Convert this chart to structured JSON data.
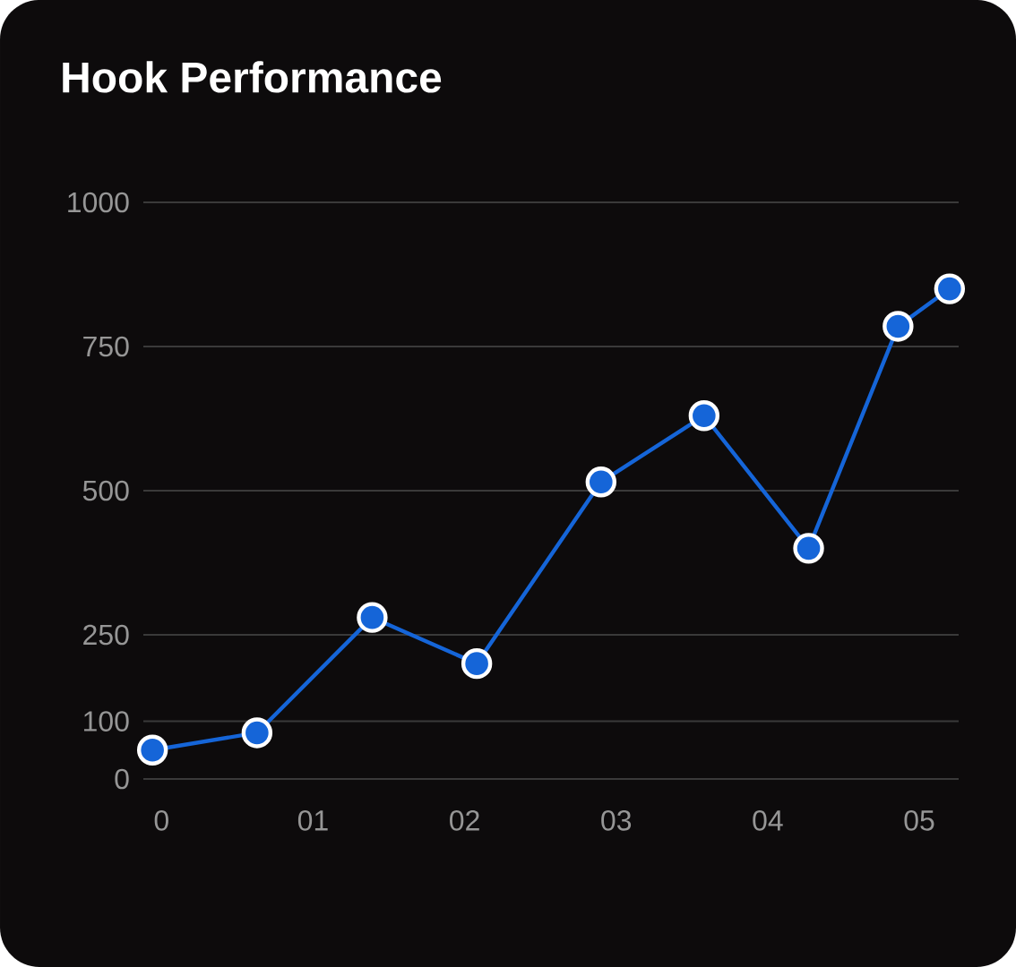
{
  "chart_data": {
    "type": "line",
    "title": "Hook Performance",
    "x": [
      -0.06,
      0.63,
      1.39,
      2.08,
      2.9,
      3.58,
      4.27,
      4.86,
      5.2
    ],
    "series": [
      {
        "color": "#1565d8",
        "values": [
          50,
          80,
          280,
          200,
          515,
          630,
          400,
          785,
          850
        ]
      }
    ],
    "xlim": [
      -0.12,
      5.26
    ],
    "ylim": [
      0,
      1000
    ],
    "xticks": [
      0,
      {
        "value": 1,
        "label": "01"
      },
      {
        "value": 2,
        "label": "02"
      },
      {
        "value": 3,
        "label": "03"
      },
      {
        "value": 4,
        "label": "04"
      },
      {
        "value": 5,
        "label": "05"
      }
    ],
    "yticks": [
      0,
      100,
      250,
      500,
      750,
      1000
    ],
    "grid": "y",
    "marker": "circle",
    "line_style": "solid"
  }
}
